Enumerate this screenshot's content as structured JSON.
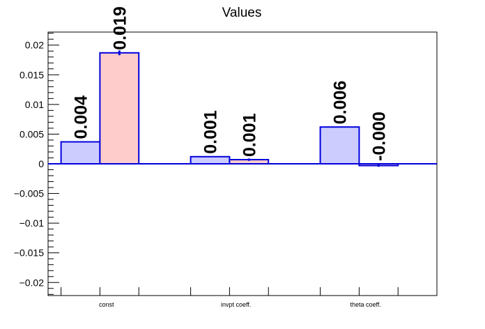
{
  "chart_data": {
    "type": "bar",
    "title": "Values",
    "categories": [
      "const",
      "invpt coeff.",
      "theta coeff."
    ],
    "ylim": [
      -0.0222,
      0.0222
    ],
    "yticks": [
      -0.02,
      -0.015,
      -0.01,
      -0.005,
      0,
      0.005,
      0.01,
      0.015,
      0.02
    ],
    "ytick_labels": [
      "−0.02",
      "−0.015",
      "−0.01",
      "−0.005",
      "0",
      "0.005",
      "0.01",
      "0.015",
      "0.02"
    ],
    "grid": false,
    "series": [
      {
        "fill": "#ccccff",
        "edge": "#0000dd",
        "values": [
          0.0037,
          0.0012,
          0.0062
        ],
        "errors": [
          0,
          0,
          0
        ],
        "labels": [
          "0.004",
          "0.001",
          "0.006"
        ]
      },
      {
        "fill": "#ffcccc",
        "edge": "#0000dd",
        "values": [
          0.0187,
          0.0007,
          -0.0003
        ],
        "errors": [
          0.0004,
          0.0002,
          0.0002
        ],
        "labels": [
          "0.019",
          "0.001",
          "-0.000"
        ]
      }
    ]
  }
}
